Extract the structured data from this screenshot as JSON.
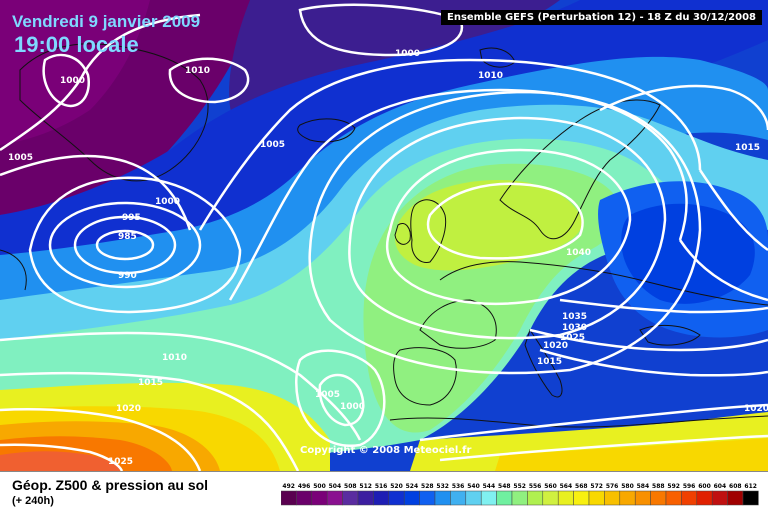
{
  "header": {
    "date_title": "Vendredi 9 janvier 2009",
    "time_title": "19:00 locale",
    "run_info": "Ensemble GEFS (Perturbation 12)  -  18 Z du 30/12/2008"
  },
  "footer": {
    "copyright": "Copyright © 2008 Meteociel.fr",
    "parameter": "Géop. Z500 & pression au sol",
    "lead_time": "(+ 240h)"
  },
  "isobar_labels": [
    "1000",
    "1010",
    "1000",
    "1010",
    "1005",
    "1005",
    "1000",
    "995",
    "985",
    "990",
    "1015",
    "1040",
    "1035",
    "1030",
    "1025",
    "1020",
    "1015",
    "1010",
    "1015",
    "1020",
    "1005",
    "1000",
    "1025",
    "1020"
  ],
  "colorbar": {
    "labels": [
      "492",
      "496",
      "500",
      "504",
      "508",
      "512",
      "516",
      "520",
      "524",
      "528",
      "532",
      "536",
      "540",
      "544",
      "548",
      "552",
      "556",
      "560",
      "564",
      "568",
      "572",
      "576",
      "580",
      "584",
      "588",
      "592",
      "596",
      "600",
      "604",
      "608",
      "612"
    ],
    "colors": [
      "#5a0050",
      "#6a006a",
      "#7a0078",
      "#8a1090",
      "#5a2ca0",
      "#3c1ea0",
      "#1e1eb4",
      "#1030d0",
      "#0040e0",
      "#1060f0",
      "#2090f0",
      "#40b0f0",
      "#60d0f0",
      "#80f0f0",
      "#70f0a0",
      "#90f080",
      "#b0f050",
      "#d0f040",
      "#e8f020",
      "#f8f010",
      "#f8d800",
      "#f8c000",
      "#f8a800",
      "#f89000",
      "#f87800",
      "#f86000",
      "#f04000",
      "#e02000",
      "#c01010",
      "#a00000",
      "#000000"
    ]
  }
}
